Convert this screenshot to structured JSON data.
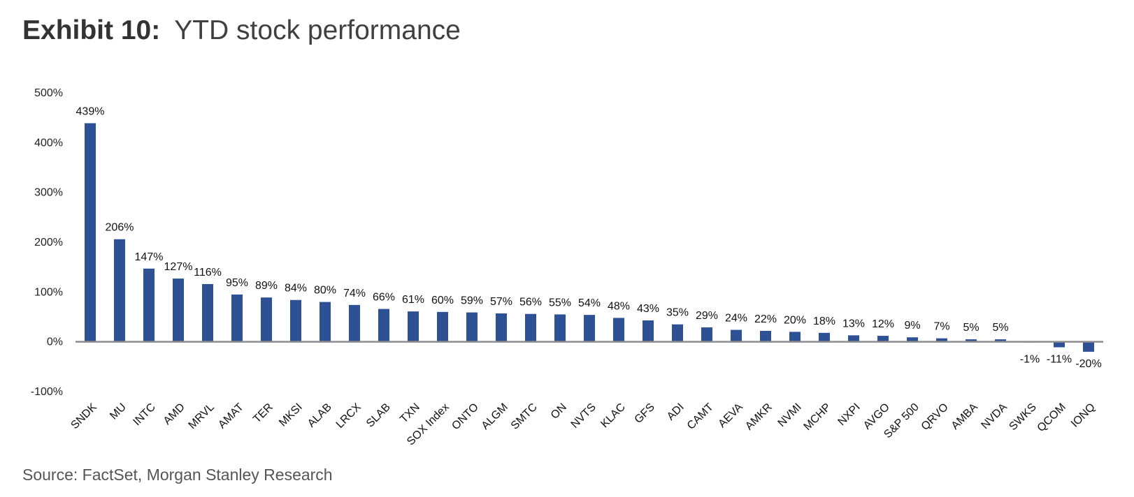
{
  "title": {
    "exhibit": "Exhibit 10:",
    "text": "YTD stock performance"
  },
  "source": "Source: FactSet, Morgan Stanley Research",
  "chart_data": {
    "type": "bar",
    "bar_color": "#2E5196",
    "axis_color": "#8C8C8C",
    "ylim": [
      -100,
      500
    ],
    "yticks": [
      500,
      400,
      300,
      200,
      100,
      0,
      -100
    ],
    "ytick_labels": [
      "500%",
      "400%",
      "300%",
      "200%",
      "100%",
      "0%",
      "-100%"
    ],
    "grid": false,
    "legend": "none",
    "categories": [
      "SNDK",
      "MU",
      "INTC",
      "AMD",
      "MRVL",
      "AMAT",
      "TER",
      "MKSI",
      "ALAB",
      "LRCX",
      "SLAB",
      "TXN",
      "SOX Index",
      "ONTO",
      "ALGM",
      "SMTC",
      "ON",
      "NVTS",
      "KLAC",
      "GFS",
      "ADI",
      "CAMT",
      "AEVA",
      "AMKR",
      "NVMI",
      "MCHP",
      "NXPI",
      "AVGO",
      "S&P 500",
      "QRVO",
      "AMBA",
      "NVDA",
      "SWKS",
      "QCOM",
      "IONQ"
    ],
    "values": [
      439,
      206,
      147,
      127,
      116,
      95,
      89,
      84,
      80,
      74,
      66,
      61,
      60,
      59,
      57,
      56,
      55,
      54,
      48,
      43,
      35,
      29,
      24,
      22,
      20,
      18,
      13,
      12,
      9,
      7,
      5,
      5,
      -1,
      -11,
      -20
    ],
    "labels": [
      "439%",
      "206%",
      "147%",
      "127%",
      "116%",
      "95%",
      "89%",
      "84%",
      "80%",
      "74%",
      "66%",
      "61%",
      "60%",
      "59%",
      "57%",
      "56%",
      "55%",
      "54%",
      "48%",
      "43%",
      "35%",
      "29%",
      "24%",
      "22%",
      "20%",
      "18%",
      "13%",
      "12%",
      "9%",
      "7%",
      "5%",
      "5%",
      "-1%",
      "-11%",
      "-20%"
    ]
  }
}
